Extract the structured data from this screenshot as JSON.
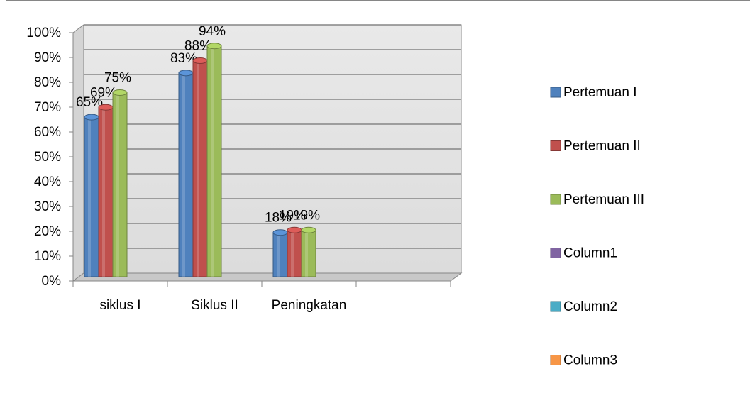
{
  "chart_data": {
    "type": "bar",
    "categories": [
      "siklus I",
      "Siklus II",
      "Peningkatan",
      null
    ],
    "series": [
      {
        "name": "Pertemuan I",
        "color": "#4f81bd",
        "values": [
          65,
          83,
          18,
          null
        ],
        "value_labels": [
          "65%",
          "83%",
          "18%",
          null
        ]
      },
      {
        "name": "Pertemuan II",
        "color": "#c0504d",
        "values": [
          69,
          88,
          19,
          null
        ],
        "value_labels": [
          "69%",
          "88%",
          "19%",
          null
        ]
      },
      {
        "name": "Pertemuan III",
        "color": "#9bbb59",
        "values": [
          75,
          94,
          19,
          null
        ],
        "value_labels": [
          "75%",
          "94%",
          "19%",
          null
        ]
      },
      {
        "name": "Column1",
        "color": "#8064a2",
        "values": [
          null,
          null,
          null,
          null
        ]
      },
      {
        "name": "Column2",
        "color": "#4bacc6",
        "values": [
          null,
          null,
          null,
          null
        ]
      },
      {
        "name": "Column3",
        "color": "#f79646",
        "values": [
          null,
          null,
          null,
          null
        ]
      }
    ],
    "ylim": [
      0,
      100
    ],
    "yticks": [
      {
        "value": 0,
        "label": "0%"
      },
      {
        "value": 10,
        "label": "10%"
      },
      {
        "value": 20,
        "label": "20%"
      },
      {
        "value": 30,
        "label": "30%"
      },
      {
        "value": 40,
        "label": "40%"
      },
      {
        "value": 50,
        "label": "50%"
      },
      {
        "value": 60,
        "label": "60%"
      },
      {
        "value": 70,
        "label": "70%"
      },
      {
        "value": 80,
        "label": "80%"
      },
      {
        "value": 90,
        "label": "90%"
      },
      {
        "value": 100,
        "label": "100%"
      }
    ],
    "grid": true,
    "legend": "right"
  }
}
